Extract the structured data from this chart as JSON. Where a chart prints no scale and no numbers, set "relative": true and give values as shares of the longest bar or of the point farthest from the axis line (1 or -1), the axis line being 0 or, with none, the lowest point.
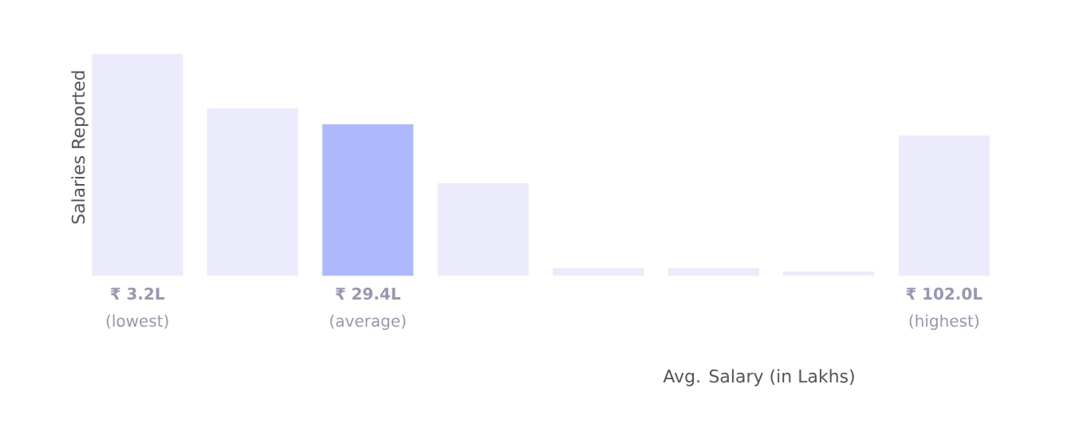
{
  "chart_data": {
    "type": "bar",
    "relative": true,
    "ylabel": "Salaries Reported",
    "xlabel": "Avg. Salary (in Lakhs)",
    "categories": [
      "**₹ 3.2L** (lowest)",
      null,
      "**₹ 29.4L** (average)",
      null,
      null,
      null,
      null,
      "**₹ 102.0L** (highest)"
    ],
    "values": [
      1,
      0.755,
      0.683,
      0.417,
      0.034,
      0.034,
      0.019,
      0.633
    ],
    "colors": [
      "#ebebfb",
      "#ebebfb",
      "#adb9fc",
      "#ebebfb",
      "#ebebfb",
      "#ebebfb",
      "#ebebfb",
      "#ebebfb"
    ]
  }
}
